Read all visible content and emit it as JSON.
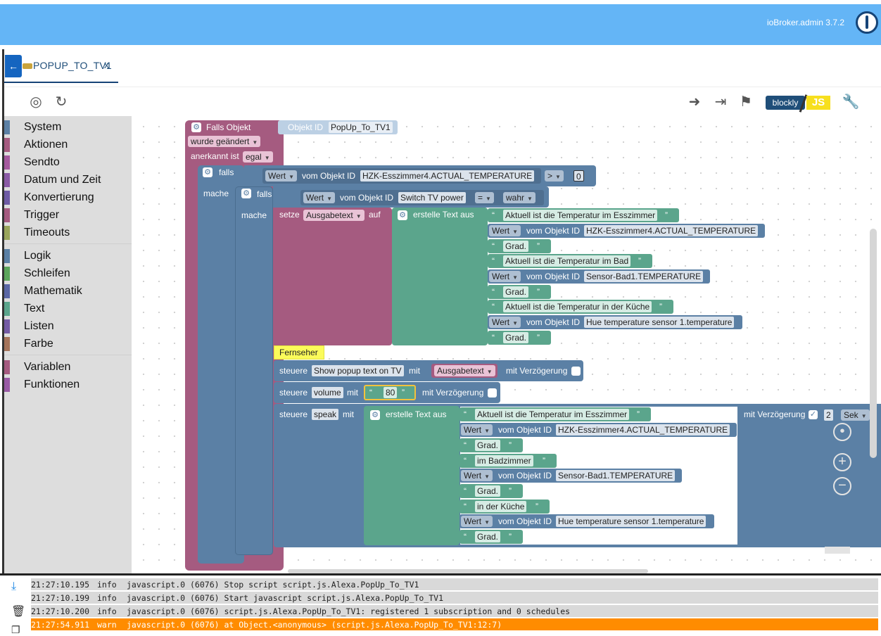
{
  "header": {
    "app_version": "ioBroker.admin 3.7.2"
  },
  "tab": {
    "name": "POPUP_TO_TV1",
    "close": "x"
  },
  "toolbar": {
    "blockly_label": "blockly",
    "js_label": "JS"
  },
  "categories": {
    "group1": [
      "System",
      "Aktionen",
      "Sendto",
      "Datum und Zeit",
      "Konvertierung",
      "Trigger",
      "Timeouts"
    ],
    "group2": [
      "Logik",
      "Schleifen",
      "Mathematik",
      "Text",
      "Listen",
      "Farbe"
    ],
    "group3": [
      "Variablen",
      "Funktionen"
    ]
  },
  "colors": {
    "trigger": "#a55b80",
    "logic": "#5b80a5",
    "text": "#5ba58c",
    "variable": "#a55b80",
    "comment": "#fbfb5a"
  },
  "blocks": {
    "trigger": {
      "title": "Falls Objekt",
      "objid_label": "Objekt ID",
      "objid_value": "PopUp_To_TV1",
      "changed": "wurde geändert",
      "ack_label": "anerkannt ist",
      "ack_value": "egal"
    },
    "if1": {
      "falls": "falls",
      "mache": "mache",
      "wert": "Wert",
      "vom": "vom Objekt ID",
      "obj": "HZK-Esszimmer4.ACTUAL_TEMPERATURE",
      "op": ">",
      "num": "0"
    },
    "if2": {
      "falls": "falls",
      "mache": "mache",
      "wert": "Wert",
      "vom": "vom Objekt ID",
      "obj": "Switch TV power",
      "op": "=",
      "val": "wahr"
    },
    "set": {
      "setze": "setze",
      "var": "Ausgabetext",
      "auf": "auf",
      "create": "erstelle Text aus",
      "items": [
        {
          "kind": "text",
          "value": "Aktuell ist die Temperatur im Esszimmer"
        },
        {
          "kind": "obj",
          "wert": "Wert",
          "vom": "vom Objekt ID",
          "value": "HZK-Esszimmer4.ACTUAL_TEMPERATURE"
        },
        {
          "kind": "text",
          "value": "Grad."
        },
        {
          "kind": "text",
          "value": "Aktuell ist die Temperatur im Bad"
        },
        {
          "kind": "obj",
          "wert": "Wert",
          "vom": "vom Objekt ID",
          "value": "Sensor-Bad1.TEMPERATURE"
        },
        {
          "kind": "text",
          "value": "Grad."
        },
        {
          "kind": "text",
          "value": "Aktuell ist die Temperatur in der Küche"
        },
        {
          "kind": "obj",
          "wert": "Wert",
          "vom": "vom Objekt ID",
          "value": "Hue temperature sensor 1.temperature"
        },
        {
          "kind": "text",
          "value": "Grad."
        }
      ]
    },
    "comment": "Fernseher",
    "control1": {
      "steuere": "steuere",
      "obj": "Show popup text on TV",
      "mit": "mit",
      "var": "Ausgabetext",
      "delay": "mit Verzögerung"
    },
    "control2": {
      "steuere": "steuere",
      "obj": "volume",
      "mit": "mit",
      "num": "80",
      "delay": "mit Verzögerung"
    },
    "control3": {
      "steuere": "steuere",
      "obj": "speak",
      "mit": "mit",
      "create": "erstelle Text aus",
      "delay": "mit Verzögerung",
      "delay_value": "2",
      "unit": "Sek",
      "items": [
        {
          "kind": "text",
          "value": "Aktuell ist die Temperatur im Esszimmer"
        },
        {
          "kind": "obj",
          "wert": "Wert",
          "vom": "vom Objekt ID",
          "value": "HZK-Esszimmer4.ACTUAL_TEMPERATURE"
        },
        {
          "kind": "text",
          "value": "Grad."
        },
        {
          "kind": "text",
          "value": "im Badzimmer"
        },
        {
          "kind": "obj",
          "wert": "Wert",
          "vom": "vom Objekt ID",
          "value": "Sensor-Bad1.TEMPERATURE"
        },
        {
          "kind": "text",
          "value": "Grad."
        },
        {
          "kind": "text",
          "value": "in der Küche"
        },
        {
          "kind": "obj",
          "wert": "Wert",
          "vom": "vom Objekt ID",
          "value": "Hue temperature sensor 1.temperature"
        },
        {
          "kind": "text",
          "value": "Grad."
        }
      ]
    }
  },
  "log": [
    {
      "time": "21:27:10.195",
      "level": "info",
      "msg": "javascript.0 (6076) Stop script script.js.Alexa.PopUp_To_TV1"
    },
    {
      "time": "21:27:10.199",
      "level": "info",
      "msg": "javascript.0 (6076) Start javascript script.js.Alexa.PopUp_To_TV1"
    },
    {
      "time": "21:27:10.200",
      "level": "info",
      "msg": "javascript.0 (6076) script.js.Alexa.PopUp_To_TV1: registered 1 subscription and 0 schedules"
    },
    {
      "time": "21:27:54.911",
      "level": "warn",
      "msg": "javascript.0 (6076) at Object.<anonymous> (script.js.Alexa.PopUp_To_TV1:12:7)"
    }
  ]
}
